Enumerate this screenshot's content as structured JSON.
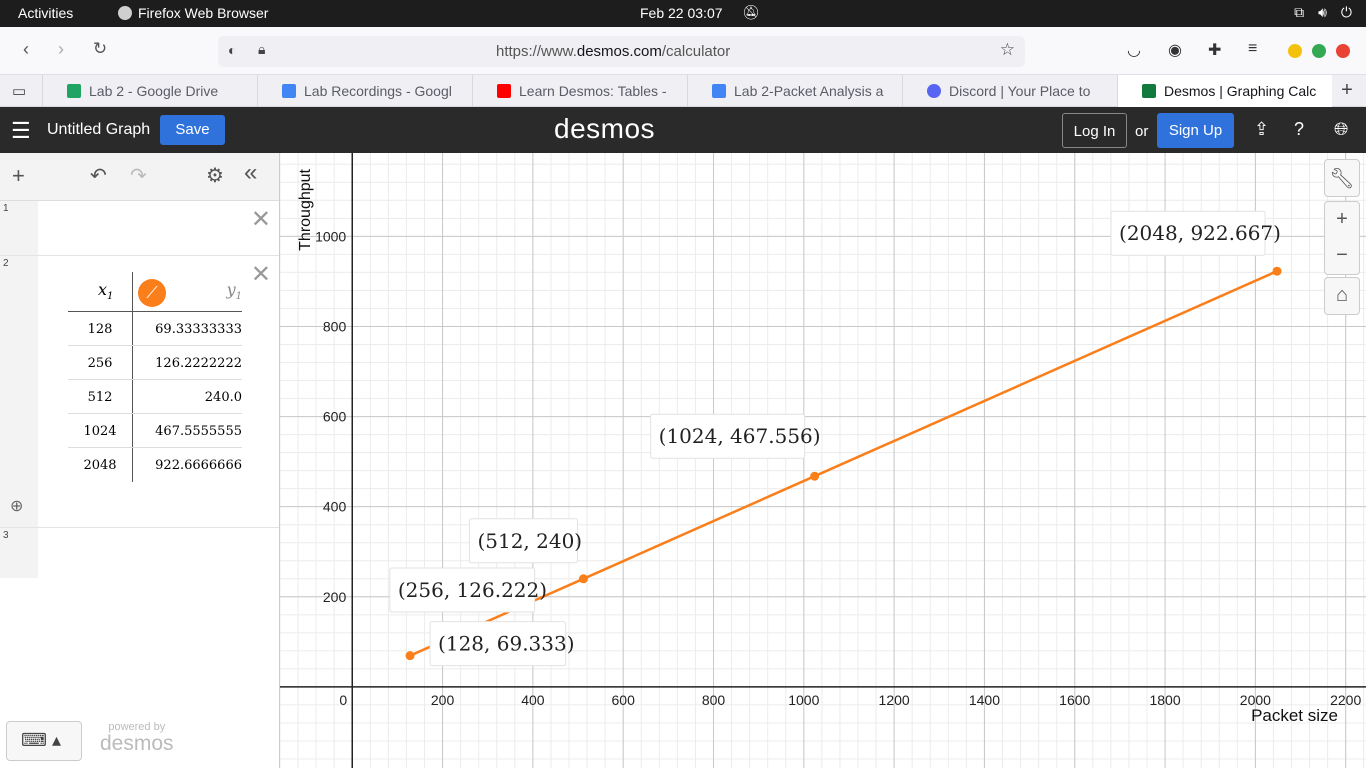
{
  "os": {
    "activities": "Activities",
    "app_name": "Firefox Web Browser",
    "clock": "Feb 22  03:07"
  },
  "browser": {
    "url_prefix": "https://www.",
    "url_domain": "desmos.com",
    "url_suffix": "/calculator",
    "tabs": [
      {
        "label": "Lab 2 - Google Drive",
        "color": "#1fa463"
      },
      {
        "label": "Lab Recordings - Googl",
        "color": "#4285f4"
      },
      {
        "label": "Learn Desmos: Tables -",
        "color": "#ff0000"
      },
      {
        "label": "Lab 2-Packet Analysis a",
        "color": "#4285f4"
      },
      {
        "label": "Discord | Your Place to",
        "color": "#5865f2"
      },
      {
        "label": "Desmos | Graphing Calc",
        "color": "#127a3d"
      }
    ]
  },
  "desmos": {
    "graph_title": "Untitled Graph",
    "save_label": "Save",
    "logo": "desmos",
    "login_label": "Log In",
    "or_label": "or",
    "signup_label": "Sign Up",
    "powered_by": "powered by",
    "powered_logo": "desmos"
  },
  "expressions": [
    {
      "num": "1"
    },
    {
      "num": "2",
      "table": {
        "x_header": "x",
        "x_sub": "1",
        "y_header": "y",
        "y_sub": "1",
        "rows": [
          {
            "x": "128",
            "y": "69.33333333"
          },
          {
            "x": "256",
            "y": "126.2222222"
          },
          {
            "x": "512",
            "y": "240.0"
          },
          {
            "x": "1024",
            "y": "467.5555555"
          },
          {
            "x": "2048",
            "y": "922.6666666"
          }
        ]
      }
    },
    {
      "num": "3"
    }
  ],
  "chart_data": {
    "type": "line",
    "xlabel": "Packet size",
    "ylabel": "Throughput",
    "xlim": [
      -160,
      2245
    ],
    "ylim": [
      -180,
      1185
    ],
    "x_ticks": [
      0,
      200,
      400,
      600,
      800,
      1000,
      1200,
      1400,
      1600,
      1800,
      2000,
      2200
    ],
    "y_ticks": [
      200,
      400,
      600,
      800,
      1000
    ],
    "series_color": "#fa7e19",
    "points": [
      {
        "x": 128,
        "y": 69.333,
        "label": "(128, 69.333)"
      },
      {
        "x": 256,
        "y": 126.222,
        "label": "(256, 126.222)"
      },
      {
        "x": 512,
        "y": 240,
        "label": "(512, 240)"
      },
      {
        "x": 1024,
        "y": 467.556,
        "label": "(1024, 467.556)"
      },
      {
        "x": 2048,
        "y": 922.667,
        "label": "(2048, 922.667)"
      }
    ]
  }
}
